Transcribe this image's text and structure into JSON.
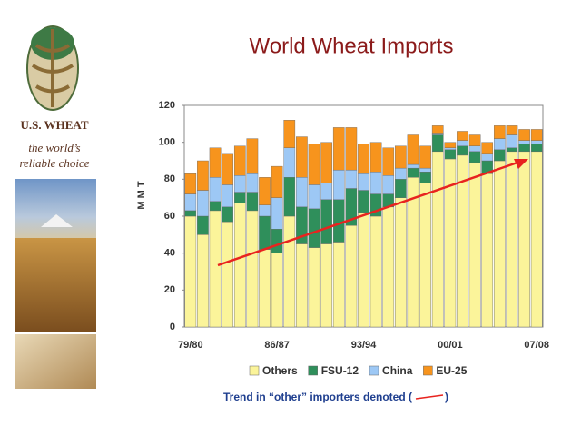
{
  "brand": {
    "name": "U.S. WHEAT",
    "tagline": [
      "the world’s",
      "reliable choice"
    ]
  },
  "chart_data": {
    "type": "stacked_bar",
    "title": "World Wheat Imports",
    "y_label": "M M T",
    "categories": [
      "79/80",
      null,
      null,
      null,
      null,
      null,
      null,
      "86/87",
      null,
      null,
      null,
      null,
      null,
      null,
      "93/94",
      null,
      null,
      null,
      null,
      null,
      null,
      "00/01",
      null,
      null,
      null,
      null,
      null,
      null,
      "07/08"
    ],
    "series": [
      {
        "name": "Others",
        "color": "#fbf49a",
        "values": [
          60,
          50,
          63,
          57,
          67,
          63,
          42,
          40,
          60,
          45,
          43,
          45,
          46,
          55,
          62,
          60,
          65,
          70,
          81,
          78,
          95,
          91,
          93,
          89,
          83,
          90,
          95,
          95,
          95
        ]
      },
      {
        "name": "FSU-12",
        "color": "#2f8f5b",
        "values": [
          3,
          10,
          5,
          8,
          6,
          10,
          18,
          13,
          21,
          20,
          21,
          24,
          23,
          20,
          12,
          12,
          7,
          10,
          5,
          6,
          9,
          5,
          5,
          6,
          7,
          6,
          2,
          4,
          4
        ]
      },
      {
        "name": "China",
        "color": "#9dc8f5",
        "values": [
          9,
          14,
          13,
          12,
          9,
          10,
          6,
          17,
          16,
          16,
          13,
          9,
          16,
          10,
          9,
          12,
          10,
          6,
          2,
          2,
          1,
          1,
          3,
          3,
          4,
          6,
          7,
          2,
          2
        ]
      },
      {
        "name": "EU-25",
        "color": "#f7941d",
        "values": [
          11,
          16,
          16,
          17,
          16,
          19,
          15,
          17,
          15,
          22,
          22,
          22,
          23,
          23,
          16,
          16,
          15,
          12,
          16,
          12,
          4,
          3,
          5,
          6,
          6,
          7,
          5,
          6,
          6
        ]
      }
    ],
    "ylim": [
      0,
      120
    ],
    "yticks": [
      0,
      20,
      40,
      60,
      80,
      100,
      120
    ],
    "annotation": "Trend in “other” importers denoted (",
    "annotation_end": ")",
    "trend_color": "#e8231f"
  }
}
